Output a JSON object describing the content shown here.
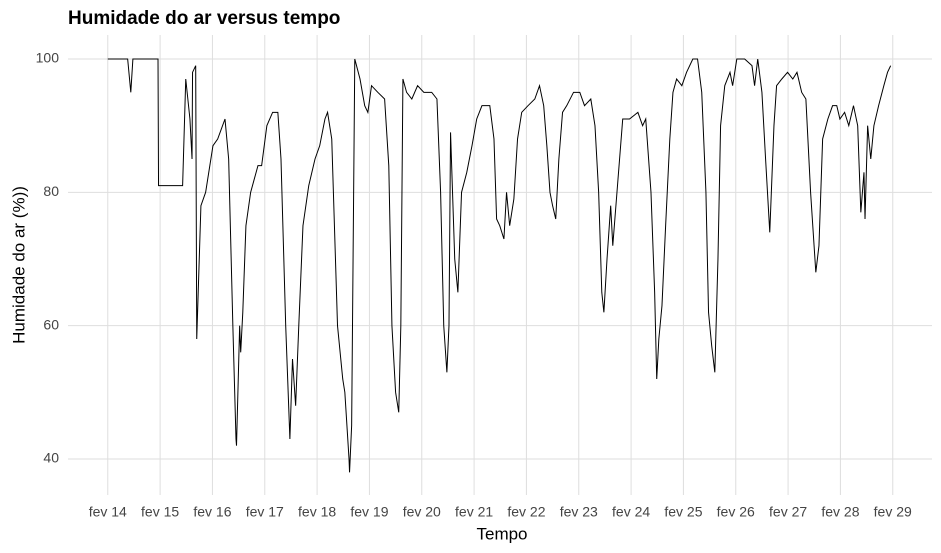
{
  "chart_data": {
    "type": "line",
    "title": "Humidade do ar versus tempo",
    "x_label": "Tempo",
    "y_label": "Humidade do ar (%))",
    "xlim": [
      13.24,
      29.75
    ],
    "ylim": [
      34.6,
      103.6
    ],
    "grid": true,
    "xticks": [
      {
        "value": 14,
        "label": "fev 14"
      },
      {
        "value": 15,
        "label": "fev 15"
      },
      {
        "value": 16,
        "label": "fev 16"
      },
      {
        "value": 17,
        "label": "fev 17"
      },
      {
        "value": 18,
        "label": "fev 18"
      },
      {
        "value": 19,
        "label": "fev 19"
      },
      {
        "value": 20,
        "label": "fev 20"
      },
      {
        "value": 21,
        "label": "fev 21"
      },
      {
        "value": 22,
        "label": "fev 22"
      },
      {
        "value": 23,
        "label": "fev 23"
      },
      {
        "value": 24,
        "label": "fev 24"
      },
      {
        "value": 25,
        "label": "fev 25"
      },
      {
        "value": 26,
        "label": "fev 26"
      },
      {
        "value": 27,
        "label": "fev 27"
      },
      {
        "value": 28,
        "label": "fev 28"
      },
      {
        "value": 29,
        "label": "fev 29"
      }
    ],
    "yticks": [
      40,
      60,
      80,
      100
    ],
    "color": "#000000",
    "x": [
      14.0,
      14.38,
      14.44,
      14.48,
      14.96,
      14.97,
      15.43,
      15.49,
      15.57,
      15.61,
      15.62,
      15.68,
      15.7,
      15.78,
      15.87,
      16.01,
      16.1,
      16.24,
      16.31,
      16.39,
      16.45,
      16.46,
      16.52,
      16.54,
      16.58,
      16.64,
      16.73,
      16.87,
      16.94,
      17.04,
      17.15,
      17.25,
      17.31,
      17.4,
      17.48,
      17.53,
      17.59,
      17.65,
      17.73,
      17.84,
      17.96,
      18.05,
      18.15,
      18.2,
      18.28,
      18.39,
      18.49,
      18.53,
      18.61,
      18.62,
      18.66,
      18.72,
      18.82,
      18.91,
      18.97,
      19.04,
      19.16,
      19.29,
      19.37,
      19.43,
      19.5,
      19.56,
      19.6,
      19.64,
      19.71,
      19.81,
      19.92,
      20.04,
      20.19,
      20.29,
      20.36,
      20.42,
      20.48,
      20.52,
      20.55,
      20.63,
      20.69,
      20.76,
      20.86,
      20.96,
      21.05,
      21.15,
      21.3,
      21.38,
      21.43,
      21.49,
      21.57,
      21.62,
      21.68,
      21.76,
      21.83,
      21.91,
      22.03,
      22.16,
      22.25,
      22.33,
      22.39,
      22.45,
      22.5,
      22.56,
      22.62,
      22.69,
      22.77,
      22.9,
      23.02,
      23.11,
      23.23,
      23.31,
      23.38,
      23.44,
      23.48,
      23.54,
      23.61,
      23.65,
      23.75,
      23.84,
      23.97,
      24.13,
      24.22,
      24.28,
      24.38,
      24.45,
      24.49,
      24.53,
      24.59,
      24.66,
      24.74,
      24.8,
      24.87,
      24.97,
      25.06,
      25.18,
      25.27,
      25.35,
      25.43,
      25.48,
      25.54,
      25.6,
      25.66,
      25.71,
      25.79,
      25.89,
      25.94,
      26.02,
      26.17,
      26.31,
      26.36,
      26.42,
      26.5,
      26.57,
      26.65,
      26.73,
      26.78,
      26.88,
      26.99,
      27.09,
      27.17,
      27.26,
      27.34,
      27.43,
      27.53,
      27.59,
      27.66,
      27.76,
      27.85,
      27.93,
      27.99,
      28.08,
      28.16,
      28.25,
      28.33,
      28.39,
      28.45,
      28.47,
      28.52,
      28.58,
      28.64,
      28.73,
      28.83,
      28.9,
      28.96
    ],
    "values": [
      100,
      100,
      95,
      100,
      100,
      81,
      81,
      97,
      91,
      85,
      98,
      99,
      58,
      78,
      80,
      87,
      88,
      91,
      85,
      60,
      43,
      42,
      60,
      56,
      62,
      75,
      80,
      84,
      84,
      90,
      92,
      92,
      85,
      60,
      43,
      55,
      48,
      60,
      75,
      81,
      85,
      87,
      91,
      92,
      88,
      60,
      52,
      50,
      40,
      38,
      45,
      100,
      97,
      93,
      92,
      96,
      95,
      94,
      84,
      60,
      50,
      47,
      60,
      97,
      95,
      94,
      96,
      95,
      95,
      94,
      80,
      60,
      53,
      60,
      89,
      70,
      65,
      80,
      83,
      87,
      91,
      93,
      93,
      88,
      76,
      75,
      73,
      80,
      75,
      79,
      88,
      92,
      93,
      94,
      96,
      93,
      87,
      80,
      78,
      76,
      85,
      92,
      93,
      95,
      95,
      93,
      94,
      90,
      80,
      65,
      62,
      70,
      78,
      72,
      82,
      91,
      91,
      92,
      90,
      91,
      80,
      65,
      52,
      58,
      63,
      75,
      88,
      95,
      97,
      96,
      98,
      100,
      100,
      95,
      80,
      62,
      57,
      53,
      70,
      90,
      96,
      98,
      96,
      100,
      100,
      99,
      96,
      100,
      95,
      85,
      74,
      90,
      96,
      97,
      98,
      97,
      98,
      95,
      94,
      80,
      68,
      72,
      88,
      91,
      93,
      93,
      91,
      92,
      90,
      93,
      90,
      77,
      83,
      76,
      90,
      85,
      90,
      93,
      96,
      98,
      99
    ]
  }
}
